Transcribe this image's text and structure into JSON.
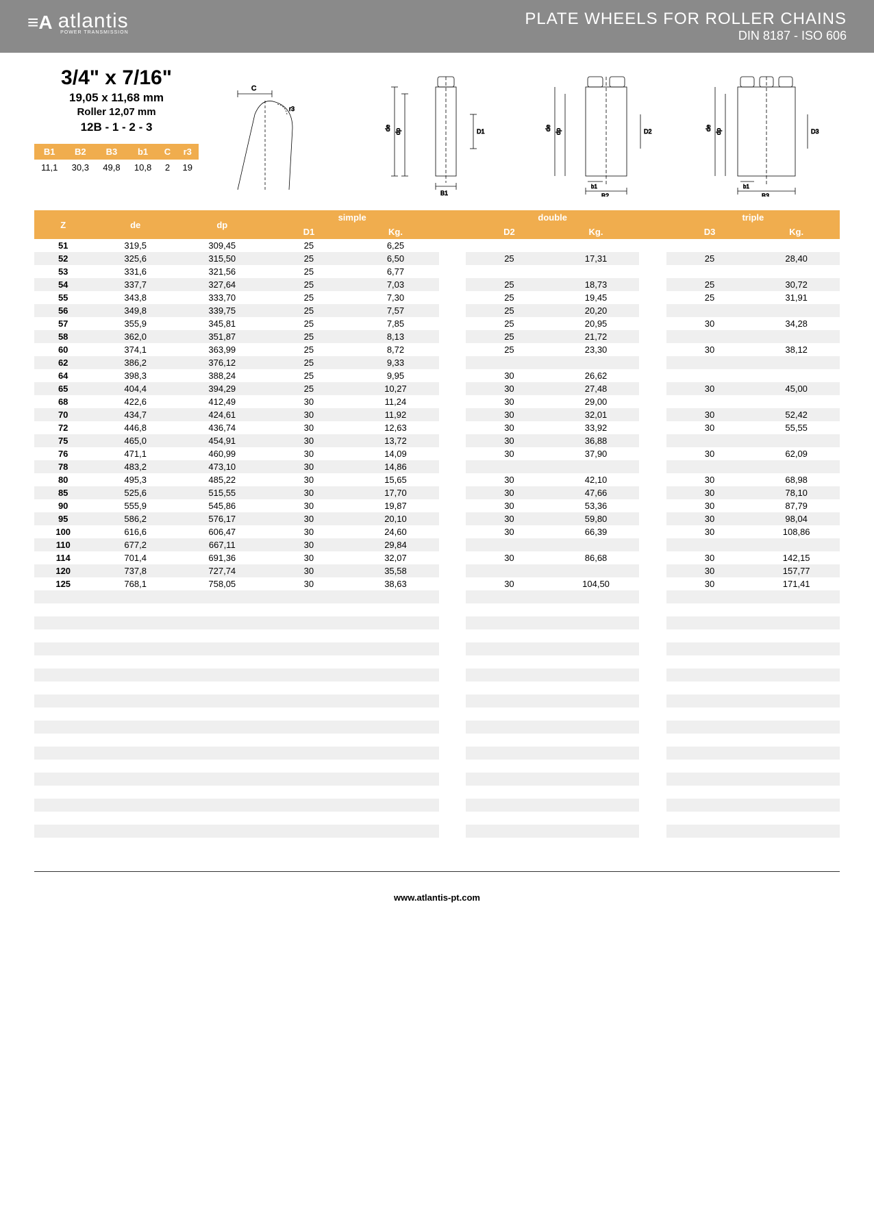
{
  "header": {
    "logo_mark": "≡A",
    "logo_text": "atlantis",
    "logo_sub": "POWER TRANSMISSION",
    "title": "PLATE WHEELS FOR ROLLER CHAINS",
    "subtitle": "DIN 8187 - ISO 606"
  },
  "spec": {
    "size": "3/4\" x 7/16\"",
    "mm": "19,05 x 11,68 mm",
    "roller": "Roller 12,07 mm",
    "code": "12B - 1 - 2 - 3"
  },
  "params": {
    "headers": [
      "B1",
      "B2",
      "B3",
      "b1",
      "C",
      "r3"
    ],
    "values": [
      "11,1",
      "30,3",
      "49,8",
      "10,8",
      "2",
      "19"
    ]
  },
  "table": {
    "group_headers": {
      "base": [
        "Z",
        "de",
        "dp"
      ],
      "simple": "simple",
      "double": "double",
      "triple": "triple"
    },
    "sub_headers": {
      "simple": [
        "D1",
        "Kg."
      ],
      "double": [
        "D2",
        "Kg."
      ],
      "triple": [
        "D3",
        "Kg."
      ]
    },
    "rows": [
      {
        "z": "51",
        "de": "319,5",
        "dp": "309,45",
        "d1": "25",
        "kg1": "6,25",
        "d2": "",
        "kg2": "",
        "d3": "",
        "kg3": ""
      },
      {
        "z": "52",
        "de": "325,6",
        "dp": "315,50",
        "d1": "25",
        "kg1": "6,50",
        "d2": "25",
        "kg2": "17,31",
        "d3": "25",
        "kg3": "28,40"
      },
      {
        "z": "53",
        "de": "331,6",
        "dp": "321,56",
        "d1": "25",
        "kg1": "6,77",
        "d2": "",
        "kg2": "",
        "d3": "",
        "kg3": ""
      },
      {
        "z": "54",
        "de": "337,7",
        "dp": "327,64",
        "d1": "25",
        "kg1": "7,03",
        "d2": "25",
        "kg2": "18,73",
        "d3": "25",
        "kg3": "30,72"
      },
      {
        "z": "55",
        "de": "343,8",
        "dp": "333,70",
        "d1": "25",
        "kg1": "7,30",
        "d2": "25",
        "kg2": "19,45",
        "d3": "25",
        "kg3": "31,91"
      },
      {
        "z": "56",
        "de": "349,8",
        "dp": "339,75",
        "d1": "25",
        "kg1": "7,57",
        "d2": "25",
        "kg2": "20,20",
        "d3": "",
        "kg3": ""
      },
      {
        "z": "57",
        "de": "355,9",
        "dp": "345,81",
        "d1": "25",
        "kg1": "7,85",
        "d2": "25",
        "kg2": "20,95",
        "d3": "30",
        "kg3": "34,28"
      },
      {
        "z": "58",
        "de": "362,0",
        "dp": "351,87",
        "d1": "25",
        "kg1": "8,13",
        "d2": "25",
        "kg2": "21,72",
        "d3": "",
        "kg3": ""
      },
      {
        "z": "60",
        "de": "374,1",
        "dp": "363,99",
        "d1": "25",
        "kg1": "8,72",
        "d2": "25",
        "kg2": "23,30",
        "d3": "30",
        "kg3": "38,12"
      },
      {
        "z": "62",
        "de": "386,2",
        "dp": "376,12",
        "d1": "25",
        "kg1": "9,33",
        "d2": "",
        "kg2": "",
        "d3": "",
        "kg3": ""
      },
      {
        "z": "64",
        "de": "398,3",
        "dp": "388,24",
        "d1": "25",
        "kg1": "9,95",
        "d2": "30",
        "kg2": "26,62",
        "d3": "",
        "kg3": ""
      },
      {
        "z": "65",
        "de": "404,4",
        "dp": "394,29",
        "d1": "25",
        "kg1": "10,27",
        "d2": "30",
        "kg2": "27,48",
        "d3": "30",
        "kg3": "45,00"
      },
      {
        "z": "68",
        "de": "422,6",
        "dp": "412,49",
        "d1": "30",
        "kg1": "11,24",
        "d2": "30",
        "kg2": "29,00",
        "d3": "",
        "kg3": ""
      },
      {
        "z": "70",
        "de": "434,7",
        "dp": "424,61",
        "d1": "30",
        "kg1": "11,92",
        "d2": "30",
        "kg2": "32,01",
        "d3": "30",
        "kg3": "52,42"
      },
      {
        "z": "72",
        "de": "446,8",
        "dp": "436,74",
        "d1": "30",
        "kg1": "12,63",
        "d2": "30",
        "kg2": "33,92",
        "d3": "30",
        "kg3": "55,55"
      },
      {
        "z": "75",
        "de": "465,0",
        "dp": "454,91",
        "d1": "30",
        "kg1": "13,72",
        "d2": "30",
        "kg2": "36,88",
        "d3": "",
        "kg3": ""
      },
      {
        "z": "76",
        "de": "471,1",
        "dp": "460,99",
        "d1": "30",
        "kg1": "14,09",
        "d2": "30",
        "kg2": "37,90",
        "d3": "30",
        "kg3": "62,09"
      },
      {
        "z": "78",
        "de": "483,2",
        "dp": "473,10",
        "d1": "30",
        "kg1": "14,86",
        "d2": "",
        "kg2": "",
        "d3": "",
        "kg3": ""
      },
      {
        "z": "80",
        "de": "495,3",
        "dp": "485,22",
        "d1": "30",
        "kg1": "15,65",
        "d2": "30",
        "kg2": "42,10",
        "d3": "30",
        "kg3": "68,98"
      },
      {
        "z": "85",
        "de": "525,6",
        "dp": "515,55",
        "d1": "30",
        "kg1": "17,70",
        "d2": "30",
        "kg2": "47,66",
        "d3": "30",
        "kg3": "78,10"
      },
      {
        "z": "90",
        "de": "555,9",
        "dp": "545,86",
        "d1": "30",
        "kg1": "19,87",
        "d2": "30",
        "kg2": "53,36",
        "d3": "30",
        "kg3": "87,79"
      },
      {
        "z": "95",
        "de": "586,2",
        "dp": "576,17",
        "d1": "30",
        "kg1": "20,10",
        "d2": "30",
        "kg2": "59,80",
        "d3": "30",
        "kg3": "98,04"
      },
      {
        "z": "100",
        "de": "616,6",
        "dp": "606,47",
        "d1": "30",
        "kg1": "24,60",
        "d2": "30",
        "kg2": "66,39",
        "d3": "30",
        "kg3": "108,86"
      },
      {
        "z": "110",
        "de": "677,2",
        "dp": "667,11",
        "d1": "30",
        "kg1": "29,84",
        "d2": "",
        "kg2": "",
        "d3": "",
        "kg3": ""
      },
      {
        "z": "114",
        "de": "701,4",
        "dp": "691,36",
        "d1": "30",
        "kg1": "32,07",
        "d2": "30",
        "kg2": "86,68",
        "d3": "30",
        "kg3": "142,15"
      },
      {
        "z": "120",
        "de": "737,8",
        "dp": "727,74",
        "d1": "30",
        "kg1": "35,58",
        "d2": "",
        "kg2": "",
        "d3": "30",
        "kg3": "157,77"
      },
      {
        "z": "125",
        "de": "768,1",
        "dp": "758,05",
        "d1": "30",
        "kg1": "38,63",
        "d2": "30",
        "kg2": "104,50",
        "d3": "30",
        "kg3": "171,41"
      }
    ],
    "empty_rows": 20
  },
  "footer": {
    "url": "www.atlantis-pt.com"
  },
  "colors": {
    "header_bg": "#8a8a8a",
    "accent": "#f0ad4e",
    "stripe": "#efefef",
    "text": "#000000",
    "white": "#ffffff"
  },
  "diagram_labels": {
    "c": "C",
    "r3": "r3",
    "de": "de",
    "dp": "dp",
    "d1": "D1",
    "d2": "D2",
    "d3": "D3",
    "b1_lower": "b1",
    "b1_upper": "B1",
    "b2": "B2",
    "b3": "B3"
  }
}
